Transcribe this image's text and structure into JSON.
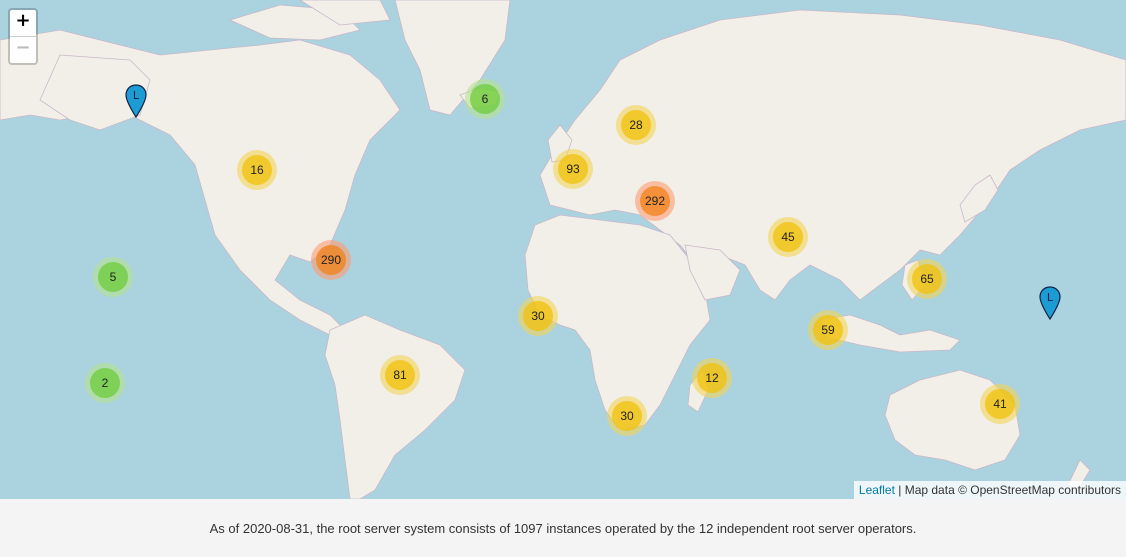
{
  "zoom": {
    "in_label": "+",
    "out_label": "−"
  },
  "clusters": [
    {
      "count": "6",
      "size": "small"
    },
    {
      "count": "28",
      "size": "medium"
    },
    {
      "count": "16",
      "size": "medium"
    },
    {
      "count": "93",
      "size": "medium"
    },
    {
      "count": "292",
      "size": "large"
    },
    {
      "count": "45",
      "size": "medium"
    },
    {
      "count": "290",
      "size": "large"
    },
    {
      "count": "5",
      "size": "small"
    },
    {
      "count": "65",
      "size": "medium"
    },
    {
      "count": "30",
      "size": "medium"
    },
    {
      "count": "59",
      "size": "medium"
    },
    {
      "count": "2",
      "size": "small"
    },
    {
      "count": "81",
      "size": "medium"
    },
    {
      "count": "12",
      "size": "medium"
    },
    {
      "count": "30",
      "size": "medium"
    },
    {
      "count": "41",
      "size": "medium"
    }
  ],
  "markers": [
    {
      "label": "L"
    },
    {
      "label": "L"
    }
  ],
  "attribution": {
    "leaflet": "Leaflet",
    "separator": " | Map data © ",
    "osm": "OpenStreetMap",
    "contributors": " contributors"
  },
  "caption": "As of 2020-08-31, the root server system consists of 1097 instances operated by the 12 independent root server operators."
}
